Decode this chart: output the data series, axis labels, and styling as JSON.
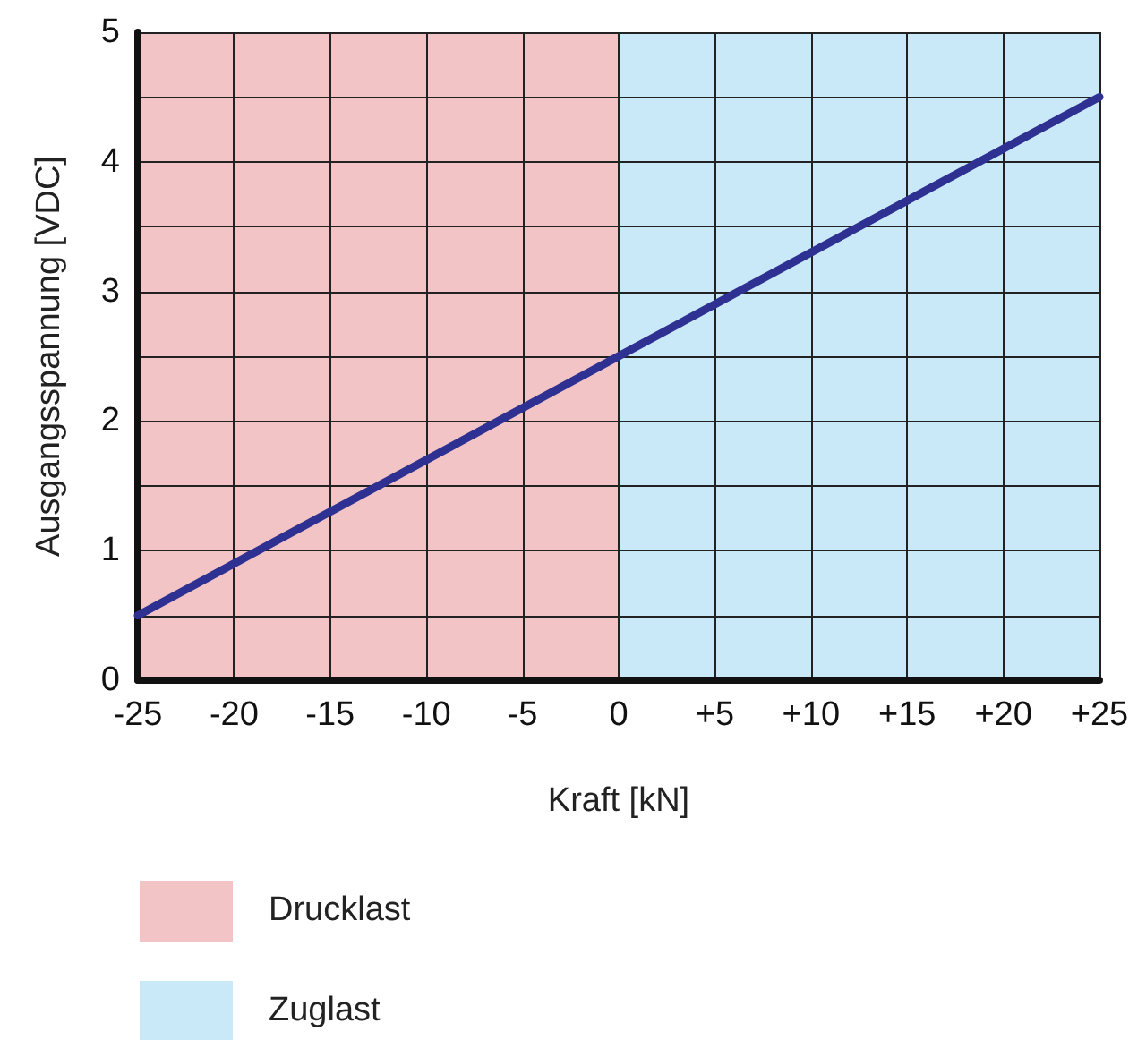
{
  "chart_data": {
    "type": "line",
    "xlabel": "Kraft [kN]",
    "ylabel": "Ausgangsspannung [VDC]",
    "x": [
      -25,
      25
    ],
    "series": [
      {
        "color": "#2e3192",
        "values": [
          0.5,
          4.5
        ]
      }
    ],
    "xlim": [
      -25,
      25
    ],
    "ylim": [
      0,
      5
    ],
    "xticks": [
      -25,
      -20,
      -15,
      -10,
      -5,
      0,
      {
        "value": 5,
        "label": "+5"
      },
      {
        "value": 10,
        "label": "+10"
      },
      {
        "value": 15,
        "label": "+15"
      },
      {
        "value": 20,
        "label": "+20"
      },
      {
        "value": 25,
        "label": "+25"
      }
    ],
    "yticks": [
      0,
      {
        "value": 0.5,
        "label": null
      },
      1,
      {
        "value": 1.5,
        "label": null
      },
      2,
      {
        "value": 2.5,
        "label": null
      },
      3,
      {
        "value": 3.5,
        "label": null
      },
      4,
      {
        "value": 4.5,
        "label": null
      },
      5
    ],
    "grid": true,
    "legend": "bottom left",
    "marker": "none",
    "line_style": "solid",
    "bands": [
      {
        "axis": "x",
        "from": -25,
        "to": 0,
        "label": "Drucklast",
        "color": "#f2c4c6"
      },
      {
        "axis": "x",
        "from": 0,
        "to": 25,
        "label": "Zuglast",
        "color": "#c9e8f8"
      }
    ]
  }
}
